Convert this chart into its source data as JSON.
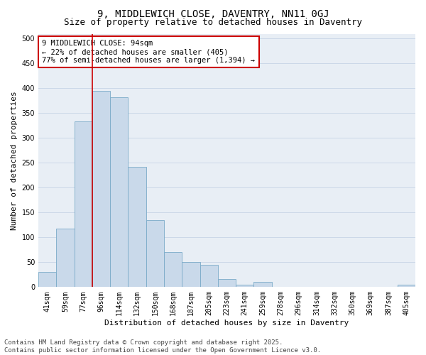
{
  "title": "9, MIDDLEWICH CLOSE, DAVENTRY, NN11 0GJ",
  "subtitle": "Size of property relative to detached houses in Daventry",
  "xlabel": "Distribution of detached houses by size in Daventry",
  "ylabel": "Number of detached properties",
  "categories": [
    "41sqm",
    "59sqm",
    "77sqm",
    "96sqm",
    "114sqm",
    "132sqm",
    "150sqm",
    "168sqm",
    "187sqm",
    "205sqm",
    "223sqm",
    "241sqm",
    "259sqm",
    "278sqm",
    "296sqm",
    "314sqm",
    "332sqm",
    "350sqm",
    "369sqm",
    "387sqm",
    "405sqm"
  ],
  "values": [
    30,
    118,
    333,
    395,
    382,
    242,
    135,
    70,
    50,
    45,
    16,
    5,
    10,
    0,
    0,
    0,
    0,
    0,
    0,
    0,
    5
  ],
  "bar_color": "#c9d9ea",
  "bar_edge_color": "#7aaac8",
  "vline_color": "#cc0000",
  "vline_position": 2.5,
  "annotation_text": "9 MIDDLEWICH CLOSE: 94sqm\n← 22% of detached houses are smaller (405)\n77% of semi-detached houses are larger (1,394) →",
  "annotation_box_color": "#ffffff",
  "annotation_box_edge": "#cc0000",
  "ylim": [
    0,
    510
  ],
  "yticks": [
    0,
    50,
    100,
    150,
    200,
    250,
    300,
    350,
    400,
    450,
    500
  ],
  "grid_color": "#ccd8e8",
  "background_color": "#e8eef5",
  "footer_text": "Contains HM Land Registry data © Crown copyright and database right 2025.\nContains public sector information licensed under the Open Government Licence v3.0.",
  "title_fontsize": 10,
  "subtitle_fontsize": 9,
  "axis_label_fontsize": 8,
  "tick_fontsize": 7,
  "annotation_fontsize": 7.5,
  "footer_fontsize": 6.5
}
